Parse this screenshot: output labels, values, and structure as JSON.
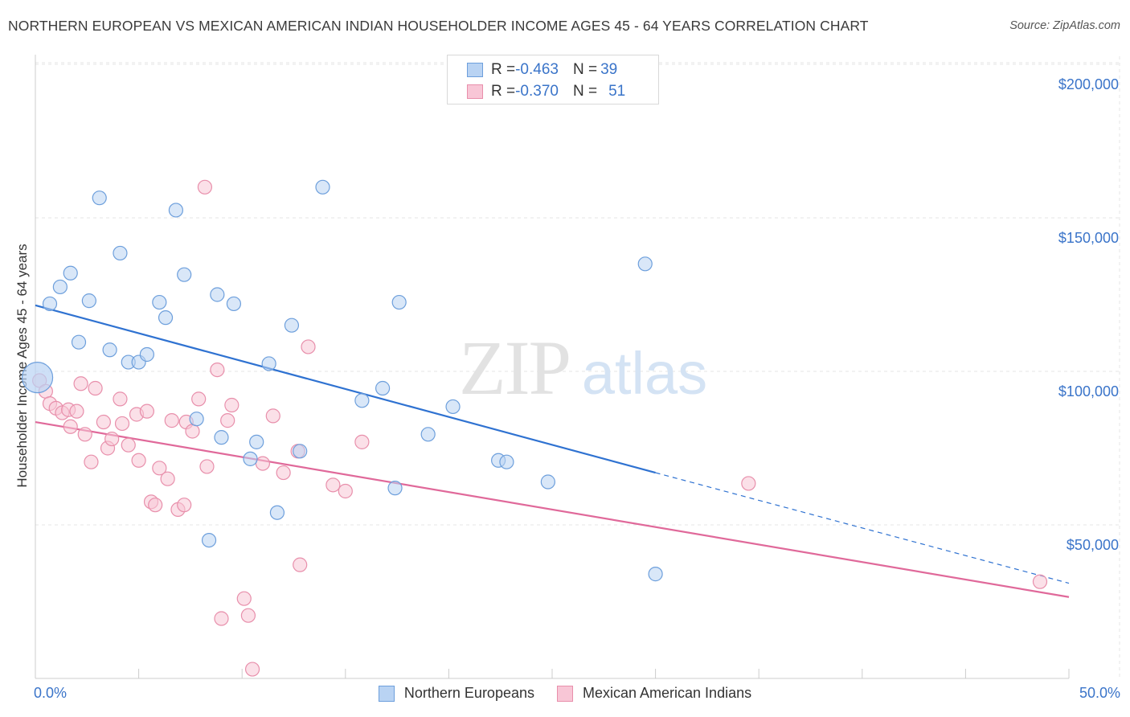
{
  "title": "NORTHERN EUROPEAN VS MEXICAN AMERICAN INDIAN HOUSEHOLDER INCOME AGES 45 - 64 YEARS CORRELATION CHART",
  "source": "Source: ZipAtlas.com",
  "watermark": {
    "zip": "ZIP",
    "atlas": "atlas"
  },
  "colors": {
    "blue_fill": "#b9d3f3",
    "blue_stroke": "#6d9fdc",
    "blue_line": "#2f72d1",
    "pink_fill": "#f8c6d6",
    "pink_stroke": "#e88fab",
    "pink_line": "#e0699a",
    "axis_text": "#3a74c9",
    "grid": "#e6e6e6"
  },
  "legend_top": [
    {
      "r_label": "R = ",
      "r_value": "-0.463",
      "n_label": "N = ",
      "n_value": "39"
    },
    {
      "r_label": "R = ",
      "r_value": "-0.370",
      "n_label": "N = ",
      "n_value": "51"
    }
  ],
  "chart_data": {
    "type": "scatter",
    "title": "NORTHERN EUROPEAN VS MEXICAN AMERICAN INDIAN HOUSEHOLDER INCOME AGES 45 - 64 YEARS CORRELATION CHART",
    "xlabel": "",
    "ylabel": "Householder Income Ages 45 - 64 years",
    "xlim": [
      0,
      50
    ],
    "ylim": [
      0,
      210000
    ],
    "x_tick_labels": [
      "0.0%",
      "50.0%"
    ],
    "y_ticks": [
      50000,
      100000,
      150000,
      200000
    ],
    "y_tick_labels": [
      "$50,000",
      "$100,000",
      "$150,000",
      "$200,000"
    ],
    "grid": true,
    "legend_position": "bottom-center",
    "series": [
      {
        "name": "Northern Europeans",
        "r": -0.463,
        "n": 39,
        "trend": {
          "x0": 0,
          "y0": 121500,
          "x1": 30,
          "y1": 67000,
          "dash_to_x": 50,
          "dash_to_y": 31000
        },
        "points": [
          [
            0.1,
            98000
          ],
          [
            0.7,
            122000
          ],
          [
            1.2,
            127500
          ],
          [
            1.7,
            132000
          ],
          [
            2.1,
            109500
          ],
          [
            2.6,
            123000
          ],
          [
            3.1,
            156500
          ],
          [
            3.6,
            107000
          ],
          [
            4.1,
            138500
          ],
          [
            4.5,
            103000
          ],
          [
            5.0,
            103000
          ],
          [
            5.4,
            105500
          ],
          [
            6.0,
            122500
          ],
          [
            6.3,
            117500
          ],
          [
            6.8,
            152500
          ],
          [
            7.2,
            131500
          ],
          [
            7.8,
            84500
          ],
          [
            8.4,
            45000
          ],
          [
            8.8,
            125000
          ],
          [
            9.0,
            78500
          ],
          [
            9.6,
            122000
          ],
          [
            10.4,
            71500
          ],
          [
            10.7,
            77000
          ],
          [
            11.3,
            102500
          ],
          [
            11.7,
            54000
          ],
          [
            12.8,
            74000
          ],
          [
            12.4,
            115000
          ],
          [
            13.9,
            160000
          ],
          [
            15.8,
            90500
          ],
          [
            16.8,
            94500
          ],
          [
            17.4,
            62000
          ],
          [
            17.6,
            122500
          ],
          [
            19.0,
            79500
          ],
          [
            20.2,
            88500
          ],
          [
            22.4,
            71000
          ],
          [
            22.8,
            70500
          ],
          [
            24.8,
            64000
          ],
          [
            29.5,
            135000
          ],
          [
            30.0,
            34000
          ]
        ]
      },
      {
        "name": "Mexican American Indians",
        "r": -0.37,
        "n": 51,
        "trend": {
          "x0": 0,
          "y0": 83500,
          "x1": 50,
          "y1": 26500
        },
        "points": [
          [
            0.2,
            97000
          ],
          [
            0.5,
            93500
          ],
          [
            0.7,
            89500
          ],
          [
            1.0,
            88000
          ],
          [
            1.3,
            86500
          ],
          [
            1.6,
            87500
          ],
          [
            1.7,
            82000
          ],
          [
            2.0,
            87000
          ],
          [
            2.2,
            96000
          ],
          [
            2.4,
            79500
          ],
          [
            2.7,
            70500
          ],
          [
            2.9,
            94500
          ],
          [
            3.3,
            83500
          ],
          [
            3.5,
            75000
          ],
          [
            3.7,
            78000
          ],
          [
            4.1,
            91000
          ],
          [
            4.2,
            83000
          ],
          [
            4.5,
            76000
          ],
          [
            4.9,
            86000
          ],
          [
            5.0,
            71000
          ],
          [
            5.4,
            87000
          ],
          [
            5.6,
            57500
          ],
          [
            5.8,
            56500
          ],
          [
            6.0,
            68500
          ],
          [
            6.4,
            65000
          ],
          [
            6.6,
            84000
          ],
          [
            6.9,
            55000
          ],
          [
            7.2,
            56500
          ],
          [
            7.3,
            83500
          ],
          [
            7.6,
            80500
          ],
          [
            7.9,
            91000
          ],
          [
            8.2,
            160000
          ],
          [
            8.3,
            69000
          ],
          [
            8.8,
            100500
          ],
          [
            9.0,
            19500
          ],
          [
            9.3,
            84000
          ],
          [
            9.5,
            89000
          ],
          [
            10.1,
            26000
          ],
          [
            10.3,
            20500
          ],
          [
            10.5,
            3000
          ],
          [
            11.0,
            70000
          ],
          [
            11.5,
            85500
          ],
          [
            12.0,
            67000
          ],
          [
            12.7,
            74000
          ],
          [
            12.8,
            37000
          ],
          [
            13.2,
            108000
          ],
          [
            14.4,
            63000
          ],
          [
            15.0,
            61000
          ],
          [
            15.8,
            77000
          ],
          [
            34.5,
            63500
          ],
          [
            48.6,
            31500
          ]
        ]
      }
    ]
  }
}
